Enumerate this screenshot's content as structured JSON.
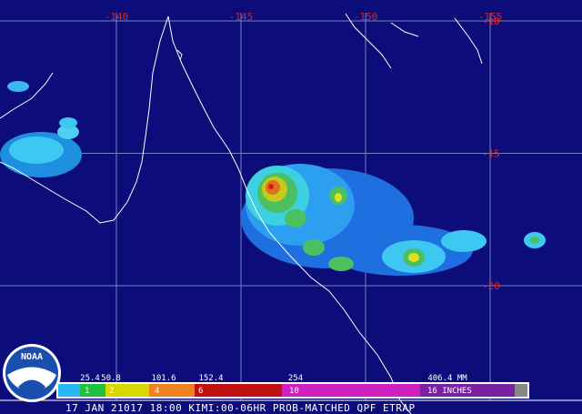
{
  "map": {
    "longitudes": [
      -140,
      -145,
      -150,
      -155
    ],
    "latitudes": [
      -10,
      -15,
      -20
    ],
    "legend": {
      "mm_labels": [
        25.4,
        50.8,
        101.6,
        152.4,
        254,
        "406.4 MM"
      ],
      "inch_labels": [
        1,
        2,
        4,
        6,
        10,
        "16 INCHES"
      ]
    },
    "footer": "17 JAN 21017 18:00 KIMI:00-06HR PROB-MATCHED QPF ETRAP",
    "logo": "NOAA"
  }
}
